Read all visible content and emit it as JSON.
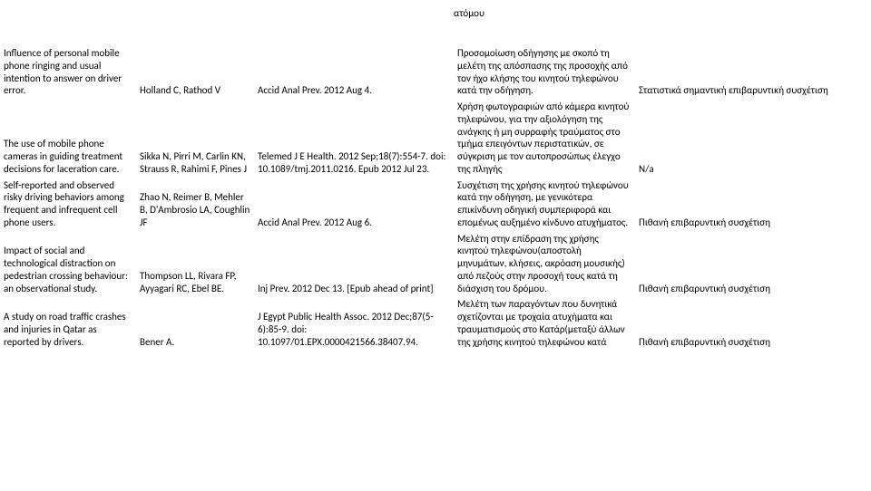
{
  "header_fragment": "ατόμου",
  "rows": [
    {
      "title": "Influence of personal mobile phone ringing and usual intention to answer on driver error.",
      "authors": "Holland C, Rathod V",
      "journal": "Accid Anal Prev. 2012 Aug 4.",
      "summary": "Προσομοίωση οδήγησης με σκοπό τη μελέτη της απόσπασης της προσοχής από τον ήχο κλήσης του κινητού τηλεφώνου κατά την οδήγηση.",
      "result": "Στατιστικά σημαντική επιβαρυντική συσχέτιση"
    },
    {
      "title": "The use of mobile phone cameras in guiding treatment decisions for laceration care.",
      "authors": "Sikka N, Pirri M, Carlin KN, Strauss R, Rahimi F, Pines J",
      "journal": "Telemed J E Health. 2012 Sep;18(7):554-7. doi: 10.1089/tmj.2011.0216. Epub 2012 Jul 23.",
      "summary": "Χρήση φωτογραφιών από κάμερα κινητού τηλεφώνου, για την αξιολόγηση της ανάγκης ή μη συρραφής τραύματος στο τμήμα επειγόντων περιστατικών, σε σύγκριση με τον αυτοπροσώπως έλεγχο της πληγής",
      "result": "Ν/a"
    },
    {
      "title": "Self-reported and observed risky driving behaviors among frequent and infrequent cell phone users.",
      "authors": "Zhao N, Reimer B, Mehler B, D'Ambrosio LA, Coughlin JF",
      "journal": "Accid Anal Prev. 2012 Aug 6.",
      "summary": "Συσχέτιση της χρήσης κινητού τηλεφώνου κατά την οδήγηση, με γενικότερα επικίνδυνη οδηγική συμπεριφορά και επομένως αυξημένο κίνδυνο ατυχήματος.",
      "result": "Πιθανή επιβαρυντική συσχέτιση"
    },
    {
      "title": " Impact of social and technological distraction on pedestrian crossing behaviour: an observational study.",
      "authors": "Thompson LL, Rivara FP, Ayyagari RC, Ebel BE.",
      "journal": "Inj Prev. 2012 Dec 13. [Epub ahead of print]",
      "summary": "Μελέτη στην επίδραση της χρήσης κινητού τηλεφώνου(αποστολή μηνυμάτων, κλήσεις, ακρόαση μουσικής) από πεζούς στην προσοχή τους κατά τη διάσχιση του δρόμου.",
      "result": "Πιθανή επιβαρυντική συσχέτιση"
    },
    {
      "title": " A study on road traffic crashes and injuries in Qatar as reported by drivers.",
      "authors": "Bener A.",
      "journal": "J Egypt Public Health Assoc. 2012 Dec;87(5-6):85-9. doi: 10.1097/01.EPX.0000421566.38407.94.",
      "summary": "Μελέτη των παραγόντων που δυνητικά σχετίζονται με τροχαία ατυχήματα και τραυματισμούς στο Κατάρ(μεταξύ άλλων της χρήσης κινητού τηλεφώνου κατά",
      "result": "Πιθανή επιβαρυντική συσχέτιση"
    }
  ]
}
